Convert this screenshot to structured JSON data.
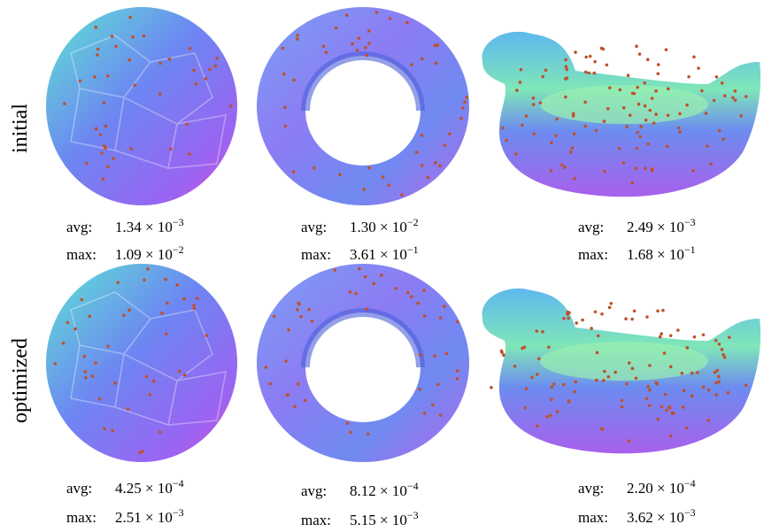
{
  "rows": [
    {
      "label": "initial",
      "cells": [
        {
          "avg_label": "avg:",
          "avg_value": "1.34 × 10",
          "avg_exp": "−3",
          "max_label": "max:",
          "max_value": "1.09 × 10",
          "max_exp": "−2"
        },
        {
          "avg_label": "avg:",
          "avg_value": "1.30 × 10",
          "avg_exp": "−2",
          "max_label": "max:",
          "max_value": "3.61 × 10",
          "max_exp": "−1"
        },
        {
          "avg_label": "avg:",
          "avg_value": "2.49 × 10",
          "avg_exp": "−3",
          "max_label": "max:",
          "max_value": "1.68 × 10",
          "max_exp": "−1"
        }
      ]
    },
    {
      "label": "optimized",
      "cells": [
        {
          "avg_label": "avg:",
          "avg_value": "4.25 × 10",
          "avg_exp": "−4",
          "max_label": "max:",
          "max_value": "2.51 × 10",
          "max_exp": "−3"
        },
        {
          "avg_label": "avg:",
          "avg_value": "8.12 × 10",
          "avg_exp": "−4",
          "max_label": "max:",
          "max_value": "5.15 × 10",
          "max_exp": "−3"
        },
        {
          "avg_label": "avg:",
          "avg_value": "2.20 × 10",
          "avg_exp": "−4",
          "max_label": "max:",
          "max_value": "3.62 × 10",
          "max_exp": "−3"
        }
      ]
    }
  ]
}
